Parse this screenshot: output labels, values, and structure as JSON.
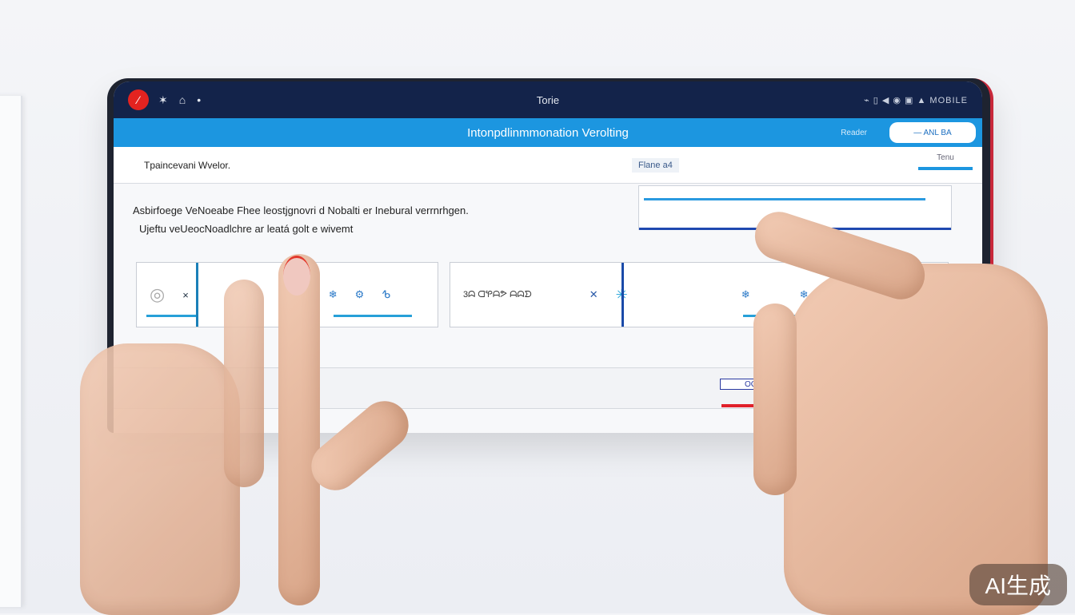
{
  "statusbar": {
    "title": "Torie",
    "right_text": "⌁ ▯  ◀ ◉ ▣ ▲ MOBILE"
  },
  "header": {
    "title": "Intonpdlinmmonation Verolting",
    "link": "Reader",
    "button": "— ANL BA"
  },
  "row1": {
    "label": "Tpaincevani Wvelor.",
    "chip": "Flane  a4",
    "tag": "Tenu"
  },
  "description": {
    "line1": "Asbirfoege VeNoeabe Fhee leostjgnovri d Nobalti er Inebural verrnrhgen.",
    "line2": "Ujeftu veUeocNoadlchre ar leatá golt  e wivemt"
  },
  "cards": [
    {
      "icons": [
        "fingerprint-icon",
        "close-icon"
      ]
    },
    {
      "icons": [
        "snowflake-icon",
        "snowflake-icon",
        "gear-icon"
      ],
      "text": "ᕹ"
    },
    {
      "text": "3ᗣ ᗡᕿᗩᕗ ᗩᗣᗤ",
      "icons": [
        "close-icon",
        "asterisk-icon"
      ]
    },
    {
      "icons": [
        "snowflake-icon",
        "snowflake-icon"
      ]
    }
  ],
  "panel": {
    "button": "OC"
  },
  "watermark": "AI生成",
  "colors": {
    "statusbar": "#13234a",
    "header": "#1c96e0",
    "accent_red": "#e32320"
  }
}
